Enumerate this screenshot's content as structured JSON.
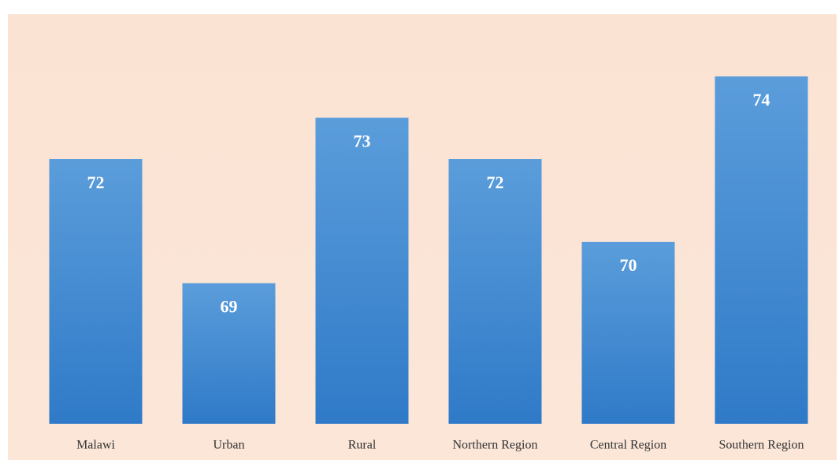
{
  "chart_data": {
    "type": "bar",
    "categories": [
      "Malawi",
      "Urban",
      "Rural",
      "Northern Region",
      "Central Region",
      "Southern Region"
    ],
    "values": [
      72,
      69,
      73,
      72,
      70,
      74
    ],
    "color": "#4a8fd6",
    "ylim": [
      65.6,
      74
    ]
  }
}
